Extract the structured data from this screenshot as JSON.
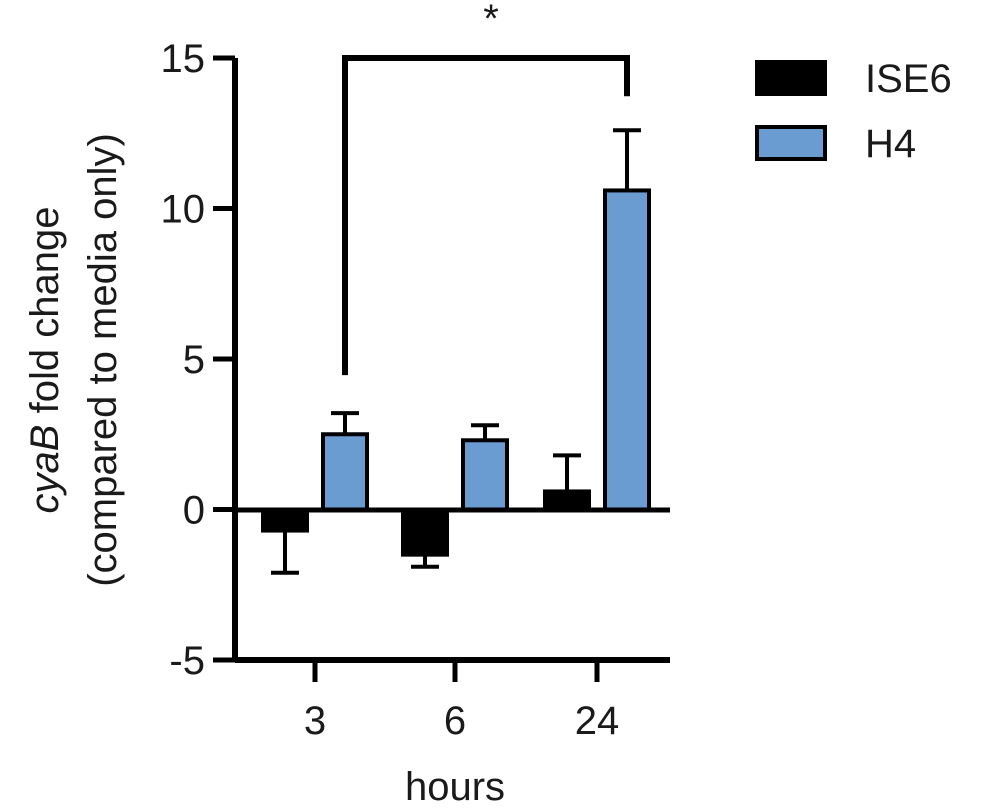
{
  "chart_data": {
    "type": "bar",
    "categories": [
      "3",
      "6",
      "24"
    ],
    "series": [
      {
        "name": "ISE6",
        "values": [
          -0.7,
          -1.5,
          0.6
        ],
        "errors": [
          1.4,
          0.4,
          1.2
        ],
        "color": "#000000"
      },
      {
        "name": "H4",
        "values": [
          2.5,
          2.3,
          10.6
        ],
        "errors": [
          0.7,
          0.5,
          2.0
        ],
        "color": "#6A9BD1"
      }
    ],
    "xlabel": "hours",
    "ylabel_italic": "cyaB",
    "ylabel_rest": " fold change",
    "ylabel_line2": "(compared to media only)",
    "ylim": [
      -5,
      15
    ],
    "yticks": [
      -5,
      0,
      5,
      10,
      15
    ],
    "significance": {
      "label": "*",
      "from_category": "3",
      "to_category": "24",
      "series": "H4"
    },
    "legend_position": "top-right"
  }
}
